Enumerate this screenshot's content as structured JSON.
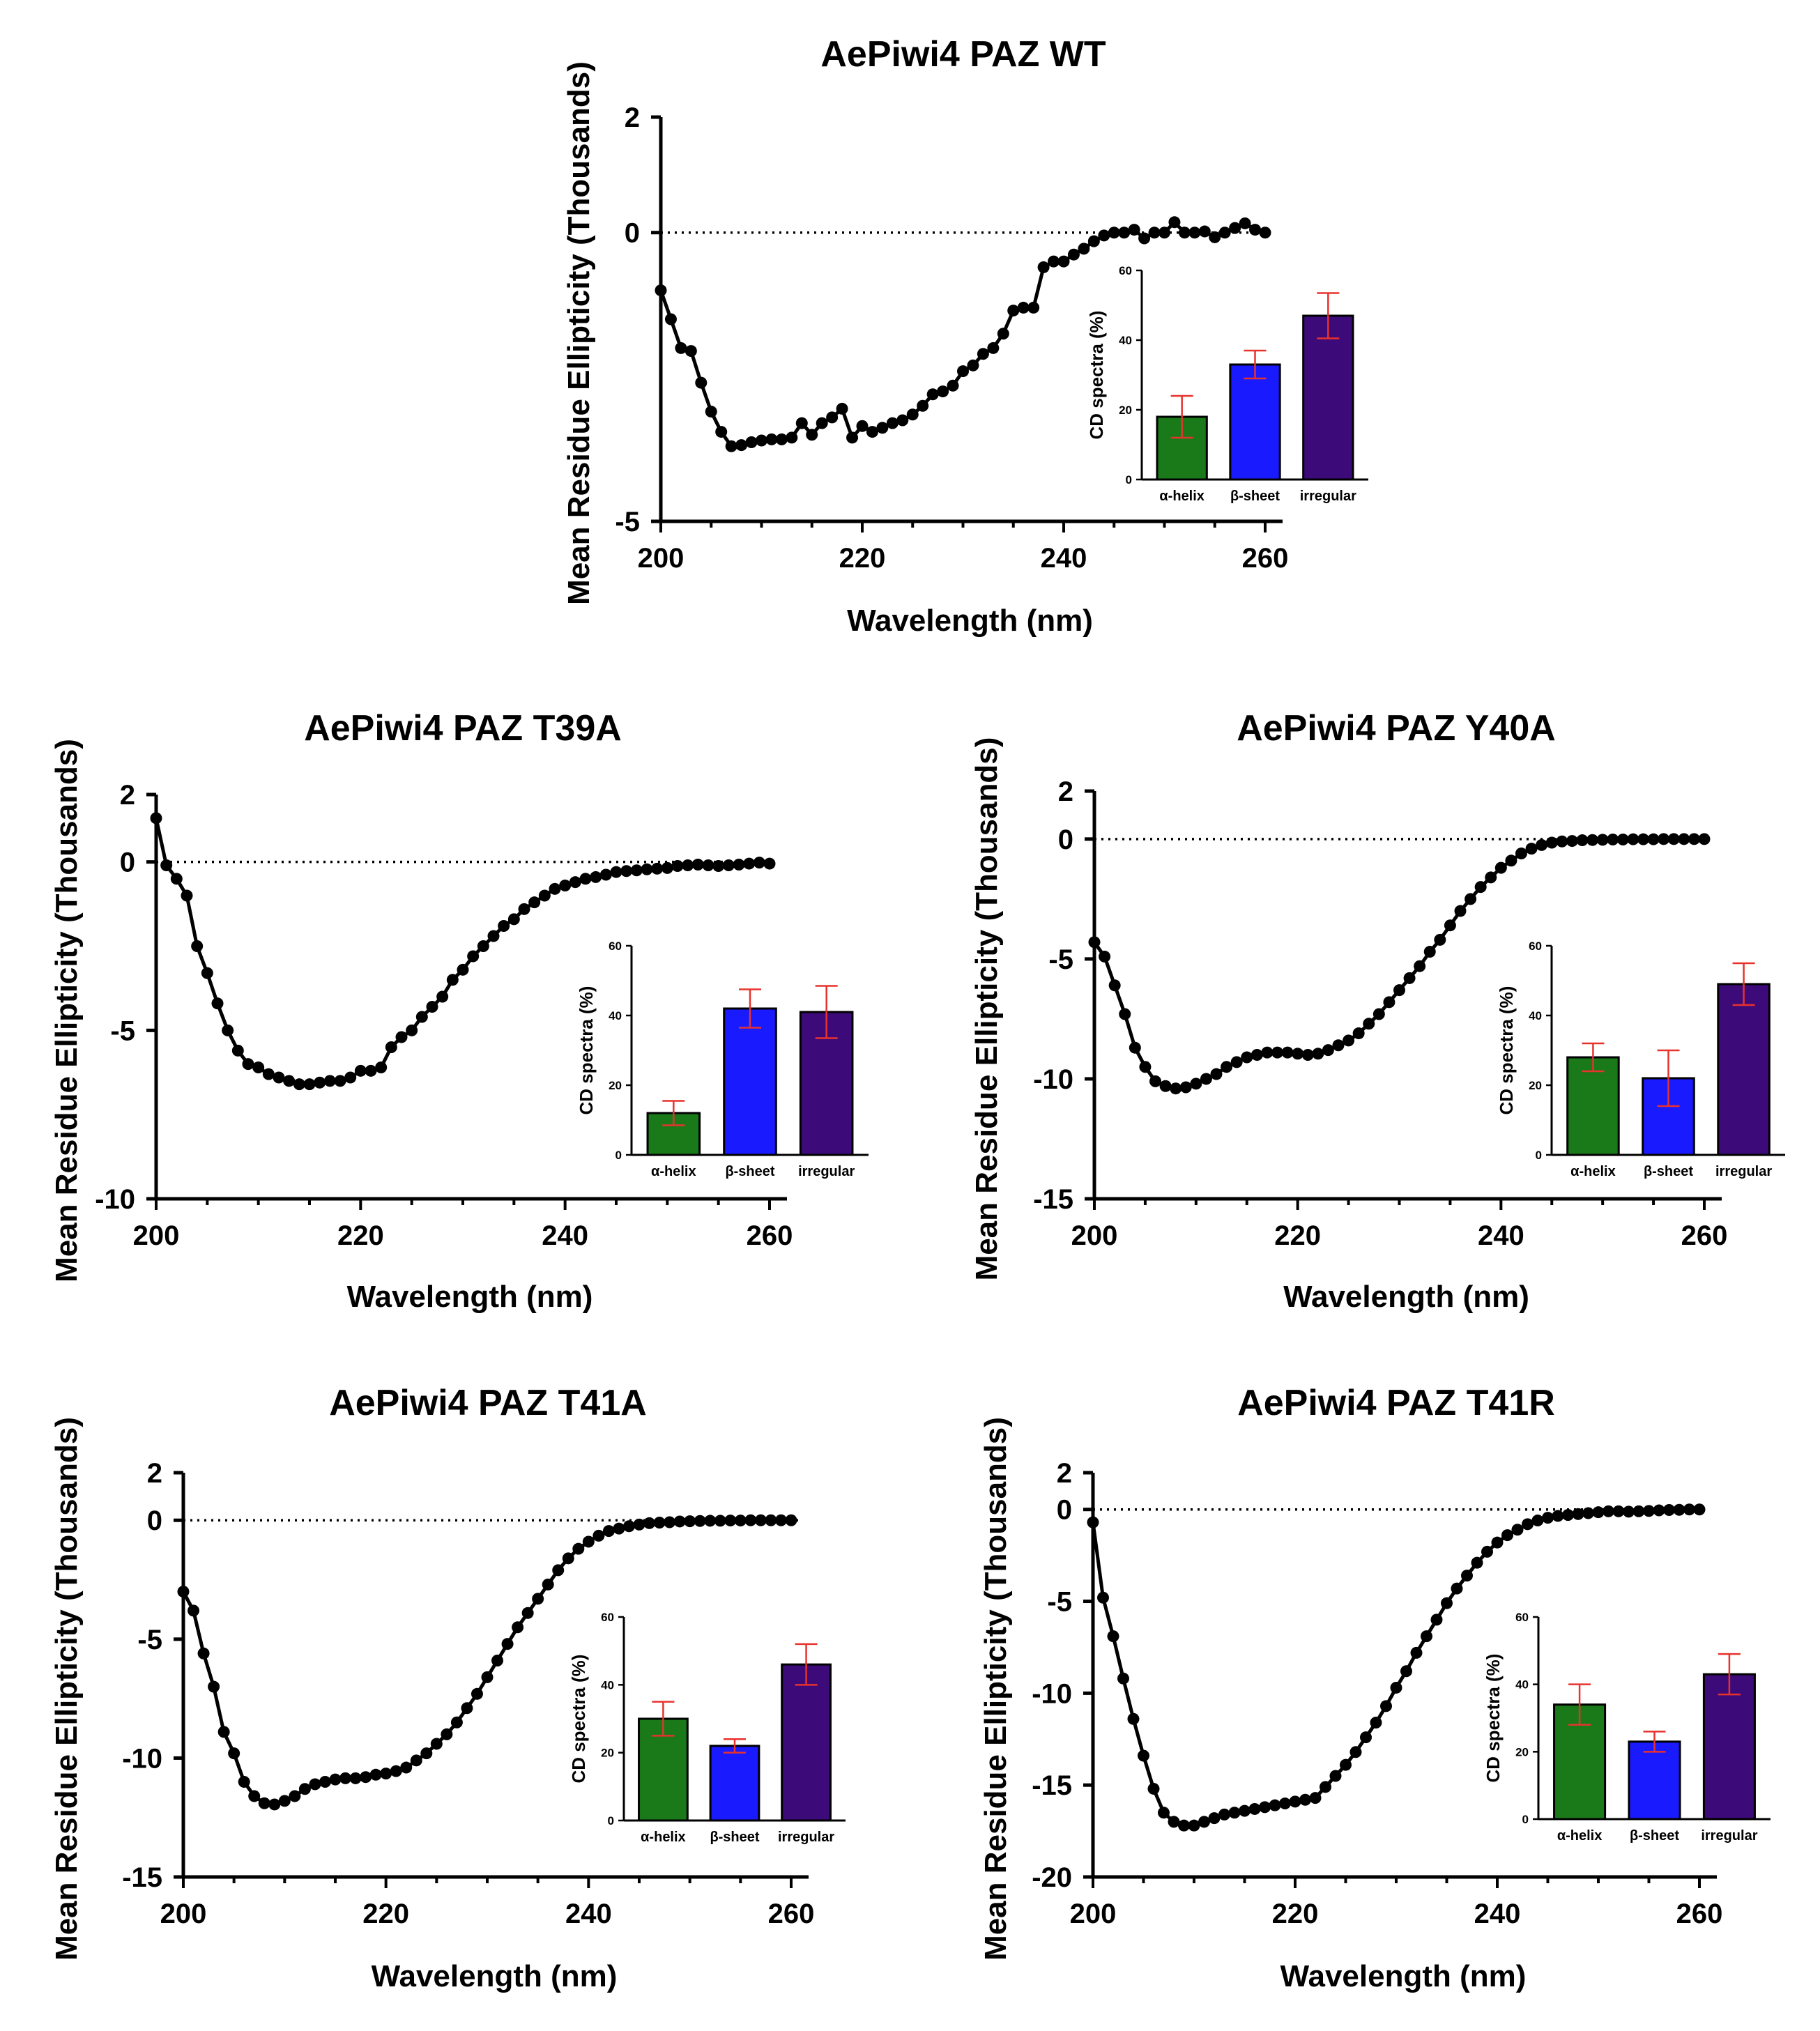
{
  "figure": {
    "panels": [
      {
        "id": "wt",
        "title": "AePiwi4 PAZ WT"
      },
      {
        "id": "t39a",
        "title": "AePiwi4 PAZ T39A"
      },
      {
        "id": "y40a",
        "title": "AePiwi4 PAZ Y40A"
      },
      {
        "id": "t41a",
        "title": "AePiwi4 PAZ T41A"
      },
      {
        "id": "t41r",
        "title": "AePiwi4 PAZ T41R"
      }
    ]
  },
  "colors": {
    "alpha_helix": "#1a7a1a",
    "beta_sheet": "#1a1aff",
    "irregular": "#3d0a7a",
    "error_bar": "#e8322c",
    "line": "#000000"
  },
  "chart_data": [
    {
      "type": "line",
      "title": "AePiwi4 PAZ WT",
      "xlabel": "Wavelength (nm)",
      "ylabel": "Mean Residue Ellipticity (Thousands)",
      "xlim": [
        200,
        260
      ],
      "ylim": [
        -5,
        2
      ],
      "xticks": [
        200,
        220,
        240,
        260
      ],
      "yticks": [
        2,
        0,
        -5
      ],
      "zero_line": true,
      "x": [
        200,
        201,
        202,
        203,
        204,
        205,
        206,
        207,
        208,
        209,
        210,
        211,
        212,
        213,
        214,
        215,
        216,
        217,
        218,
        219,
        220,
        221,
        222,
        223,
        224,
        225,
        226,
        227,
        228,
        229,
        230,
        231,
        232,
        233,
        234,
        235,
        236,
        237,
        238,
        239,
        240,
        241,
        242,
        243,
        244,
        245,
        246,
        247,
        248,
        249,
        250,
        251,
        252,
        253,
        254,
        255,
        256,
        257,
        258,
        259,
        260
      ],
      "y": [
        -1.0,
        -1.5,
        -2.0,
        -2.05,
        -2.6,
        -3.1,
        -3.45,
        -3.7,
        -3.68,
        -3.63,
        -3.6,
        -3.58,
        -3.58,
        -3.55,
        -3.3,
        -3.5,
        -3.3,
        -3.2,
        -3.05,
        -3.55,
        -3.35,
        -3.45,
        -3.38,
        -3.3,
        -3.25,
        -3.15,
        -3.0,
        -2.8,
        -2.75,
        -2.65,
        -2.4,
        -2.3,
        -2.1,
        -2.0,
        -1.75,
        -1.35,
        -1.3,
        -1.3,
        -0.6,
        -0.5,
        -0.5,
        -0.38,
        -0.28,
        -0.15,
        -0.05,
        0.0,
        0.0,
        0.05,
        -0.1,
        0.0,
        0.0,
        0.18,
        0.0,
        0.0,
        0.02,
        -0.08,
        0.0,
        0.08,
        0.16,
        0.05,
        0.0
      ],
      "inset": {
        "type": "bar",
        "ylabel": "CD spectra (%)",
        "ylim": [
          0,
          60
        ],
        "yticks": [
          0,
          20,
          40,
          60
        ],
        "categories": [
          "α-helix",
          "β-sheet",
          "irregular"
        ],
        "values": [
          18,
          33,
          47
        ],
        "errors": [
          6,
          4,
          6.5
        ]
      }
    },
    {
      "type": "line",
      "title": "AePiwi4 PAZ T39A",
      "xlabel": "Wavelength (nm)",
      "ylabel": "Mean Residue Ellipticity (Thousands)",
      "xlim": [
        200,
        260
      ],
      "ylim": [
        -10,
        2
      ],
      "xticks": [
        200,
        220,
        240,
        260
      ],
      "yticks": [
        2,
        0,
        -5,
        -10
      ],
      "zero_line": true,
      "x": [
        200,
        201,
        202,
        203,
        204,
        205,
        206,
        207,
        208,
        209,
        210,
        211,
        212,
        213,
        214,
        215,
        216,
        217,
        218,
        219,
        220,
        221,
        222,
        223,
        224,
        225,
        226,
        227,
        228,
        229,
        230,
        231,
        232,
        233,
        234,
        235,
        236,
        237,
        238,
        239,
        240,
        241,
        242,
        243,
        244,
        245,
        246,
        247,
        248,
        249,
        250,
        251,
        252,
        253,
        254,
        255,
        256,
        257,
        258,
        259,
        260
      ],
      "y": [
        1.3,
        -0.1,
        -0.5,
        -1.0,
        -2.5,
        -3.3,
        -4.2,
        -5.0,
        -5.6,
        -6.0,
        -6.1,
        -6.3,
        -6.4,
        -6.5,
        -6.6,
        -6.6,
        -6.55,
        -6.5,
        -6.5,
        -6.4,
        -6.2,
        -6.2,
        -6.1,
        -5.5,
        -5.2,
        -5.0,
        -4.6,
        -4.3,
        -4.0,
        -3.5,
        -3.2,
        -2.8,
        -2.5,
        -2.2,
        -1.9,
        -1.7,
        -1.4,
        -1.2,
        -1.0,
        -0.8,
        -0.7,
        -0.6,
        -0.5,
        -0.45,
        -0.38,
        -0.3,
        -0.27,
        -0.25,
        -0.22,
        -0.2,
        -0.18,
        -0.12,
        -0.1,
        -0.08,
        -0.1,
        -0.12,
        -0.1,
        -0.08,
        -0.05,
        -0.02,
        -0.05
      ],
      "inset": {
        "type": "bar",
        "ylabel": "CD spectra (%)",
        "ylim": [
          0,
          60
        ],
        "yticks": [
          0,
          20,
          40,
          60
        ],
        "categories": [
          "α-helix",
          "β-sheet",
          "irregular"
        ],
        "values": [
          12,
          42,
          41
        ],
        "errors": [
          3.5,
          5.5,
          7.5
        ]
      }
    },
    {
      "type": "line",
      "title": "AePiwi4 PAZ Y40A",
      "xlabel": "Wavelength (nm)",
      "ylabel": "Mean Residue Ellipticity (Thousands)",
      "xlim": [
        200,
        260
      ],
      "ylim": [
        -15,
        2
      ],
      "xticks": [
        200,
        220,
        240,
        260
      ],
      "yticks": [
        2,
        0,
        -5,
        -10,
        -15
      ],
      "zero_line": true,
      "x": [
        200,
        201,
        202,
        203,
        204,
        205,
        206,
        207,
        208,
        209,
        210,
        211,
        212,
        213,
        214,
        215,
        216,
        217,
        218,
        219,
        220,
        221,
        222,
        223,
        224,
        225,
        226,
        227,
        228,
        229,
        230,
        231,
        232,
        233,
        234,
        235,
        236,
        237,
        238,
        239,
        240,
        241,
        242,
        243,
        244,
        245,
        246,
        247,
        248,
        249,
        250,
        251,
        252,
        253,
        254,
        255,
        256,
        257,
        258,
        259,
        260
      ],
      "y": [
        -4.3,
        -4.9,
        -6.1,
        -7.3,
        -8.7,
        -9.5,
        -10.1,
        -10.3,
        -10.4,
        -10.35,
        -10.2,
        -10.0,
        -9.8,
        -9.5,
        -9.3,
        -9.1,
        -9.0,
        -8.9,
        -8.9,
        -8.9,
        -8.95,
        -9.0,
        -8.95,
        -8.8,
        -8.6,
        -8.4,
        -8.1,
        -7.7,
        -7.3,
        -6.8,
        -6.3,
        -5.8,
        -5.3,
        -4.7,
        -4.2,
        -3.6,
        -3.0,
        -2.5,
        -2.0,
        -1.6,
        -1.2,
        -0.9,
        -0.6,
        -0.4,
        -0.25,
        -0.15,
        -0.1,
        -0.08,
        -0.05,
        -0.04,
        -0.03,
        -0.02,
        -0.02,
        -0.01,
        -0.01,
        -0.01,
        0.0,
        0.0,
        0.0,
        0.0,
        0.0
      ],
      "inset": {
        "type": "bar",
        "ylabel": "CD spectra (%)",
        "ylim": [
          0,
          60
        ],
        "yticks": [
          0,
          20,
          40,
          60
        ],
        "categories": [
          "α-helix",
          "β-sheet",
          "irregular"
        ],
        "values": [
          28,
          22,
          49
        ],
        "errors": [
          4,
          8,
          6
        ]
      }
    },
    {
      "type": "line",
      "title": "AePiwi4 PAZ T41A",
      "xlabel": "Wavelength (nm)",
      "ylabel": "Mean Residue Ellipticity (Thousands)",
      "xlim": [
        200,
        260
      ],
      "ylim": [
        -15,
        2
      ],
      "xticks": [
        200,
        220,
        240,
        260
      ],
      "yticks": [
        2,
        0,
        -5,
        -10,
        -15
      ],
      "zero_line": true,
      "x": [
        200,
        201,
        202,
        203,
        204,
        205,
        206,
        207,
        208,
        209,
        210,
        211,
        212,
        213,
        214,
        215,
        216,
        217,
        218,
        219,
        220,
        221,
        222,
        223,
        224,
        225,
        226,
        227,
        228,
        229,
        230,
        231,
        232,
        233,
        234,
        235,
        236,
        237,
        238,
        239,
        240,
        241,
        242,
        243,
        244,
        245,
        246,
        247,
        248,
        249,
        250,
        251,
        252,
        253,
        254,
        255,
        256,
        257,
        258,
        259,
        260
      ],
      "y": [
        -3.0,
        -3.8,
        -5.6,
        -7.0,
        -8.9,
        -9.8,
        -11.0,
        -11.6,
        -11.9,
        -11.95,
        -11.8,
        -11.6,
        -11.3,
        -11.1,
        -11.0,
        -10.9,
        -10.85,
        -10.85,
        -10.8,
        -10.7,
        -10.65,
        -10.55,
        -10.4,
        -10.1,
        -9.8,
        -9.4,
        -9.0,
        -8.5,
        -7.9,
        -7.3,
        -6.6,
        -5.9,
        -5.2,
        -4.5,
        -3.9,
        -3.3,
        -2.7,
        -2.1,
        -1.6,
        -1.2,
        -0.9,
        -0.65,
        -0.45,
        -0.35,
        -0.25,
        -0.18,
        -0.12,
        -0.1,
        -0.08,
        -0.05,
        -0.04,
        -0.03,
        -0.02,
        -0.02,
        -0.01,
        -0.01,
        0.0,
        0.0,
        0.0,
        0.0,
        0.0
      ],
      "inset": {
        "type": "bar",
        "ylabel": "CD spectra (%)",
        "ylim": [
          0,
          60
        ],
        "yticks": [
          0,
          20,
          40,
          60
        ],
        "categories": [
          "α-helix",
          "β-sheet",
          "irregular"
        ],
        "values": [
          30,
          22,
          46
        ],
        "errors": [
          5,
          2,
          6
        ]
      }
    },
    {
      "type": "line",
      "title": "AePiwi4 PAZ T41R",
      "xlabel": "Wavelength (nm)",
      "ylabel": "Mean Residue Ellipticity (Thousands)",
      "xlim": [
        200,
        260
      ],
      "ylim": [
        -20,
        2
      ],
      "xticks": [
        200,
        220,
        240,
        260
      ],
      "yticks": [
        2,
        0,
        -5,
        -10,
        -15,
        -20
      ],
      "zero_line": true,
      "x": [
        200,
        201,
        202,
        203,
        204,
        205,
        206,
        207,
        208,
        209,
        210,
        211,
        212,
        213,
        214,
        215,
        216,
        217,
        218,
        219,
        220,
        221,
        222,
        223,
        224,
        225,
        226,
        227,
        228,
        229,
        230,
        231,
        232,
        233,
        234,
        235,
        236,
        237,
        238,
        239,
        240,
        241,
        242,
        243,
        244,
        245,
        246,
        247,
        248,
        249,
        250,
        251,
        252,
        253,
        254,
        255,
        256,
        257,
        258,
        259,
        260
      ],
      "y": [
        -0.7,
        -4.8,
        -6.9,
        -9.2,
        -11.4,
        -13.4,
        -15.2,
        -16.5,
        -17.0,
        -17.2,
        -17.2,
        -17.0,
        -16.8,
        -16.6,
        -16.5,
        -16.4,
        -16.3,
        -16.2,
        -16.1,
        -16.0,
        -15.9,
        -15.8,
        -15.7,
        -15.1,
        -14.5,
        -13.9,
        -13.2,
        -12.4,
        -11.6,
        -10.7,
        -9.7,
        -8.8,
        -7.8,
        -6.9,
        -6.0,
        -5.1,
        -4.3,
        -3.6,
        -2.9,
        -2.3,
        -1.8,
        -1.4,
        -1.1,
        -0.8,
        -0.6,
        -0.45,
        -0.35,
        -0.3,
        -0.25,
        -0.2,
        -0.15,
        -0.1,
        -0.1,
        -0.12,
        -0.1,
        -0.08,
        -0.05,
        -0.03,
        -0.02,
        0.0,
        0.0
      ],
      "inset": {
        "type": "bar",
        "ylabel": "CD spectra (%)",
        "ylim": [
          0,
          60
        ],
        "yticks": [
          0,
          20,
          40,
          60
        ],
        "categories": [
          "α-helix",
          "β-sheet",
          "irregular"
        ],
        "values": [
          34,
          23,
          43
        ],
        "errors": [
          6,
          3,
          6
        ]
      }
    }
  ]
}
